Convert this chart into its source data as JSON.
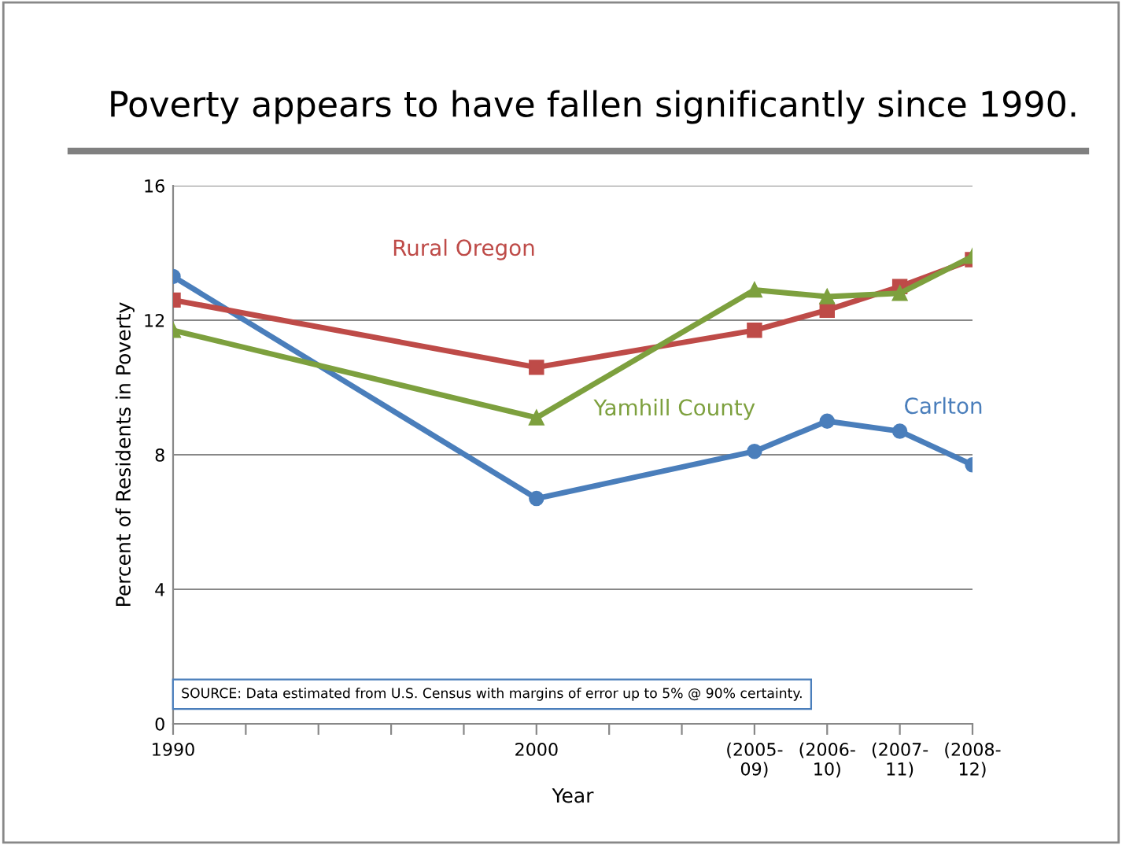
{
  "chart_data": {
    "type": "line",
    "title": "Poverty appears to have fallen significantly since 1990.",
    "xlabel": "Year",
    "ylabel": "Percent of Residents in Poverty",
    "categories": [
      "1990",
      null,
      null,
      null,
      null,
      "2000",
      null,
      null,
      "(2005-\n09)",
      "(2006-\n10)",
      "(2007-\n11)",
      "(2008-\n12)"
    ],
    "series": [
      {
        "name": "Carlton",
        "color": "#4a7ebb",
        "marker": "circle",
        "values": [
          13.3,
          null,
          null,
          null,
          null,
          6.7,
          null,
          null,
          8.1,
          9.0,
          8.7,
          7.7
        ]
      },
      {
        "name": "Rural Oregon",
        "color": "#be4b48",
        "marker": "square",
        "values": [
          12.6,
          null,
          null,
          null,
          null,
          10.6,
          null,
          null,
          11.7,
          12.3,
          13.0,
          13.8
        ]
      },
      {
        "name": "Yamhill County",
        "color": "#7da03e",
        "marker": "triangle",
        "values": [
          11.7,
          null,
          null,
          null,
          null,
          9.1,
          null,
          null,
          12.9,
          12.7,
          12.8,
          13.9
        ]
      }
    ],
    "ylim": [
      0,
      16
    ],
    "yticks": [
      0,
      4,
      8,
      12,
      16
    ],
    "grid": "y",
    "legend": false,
    "line_style": "solid",
    "annotations": [
      "SOURCE: Data estimated from U.S. Census with margins of error up to 5% @ 90% certainty."
    ]
  }
}
